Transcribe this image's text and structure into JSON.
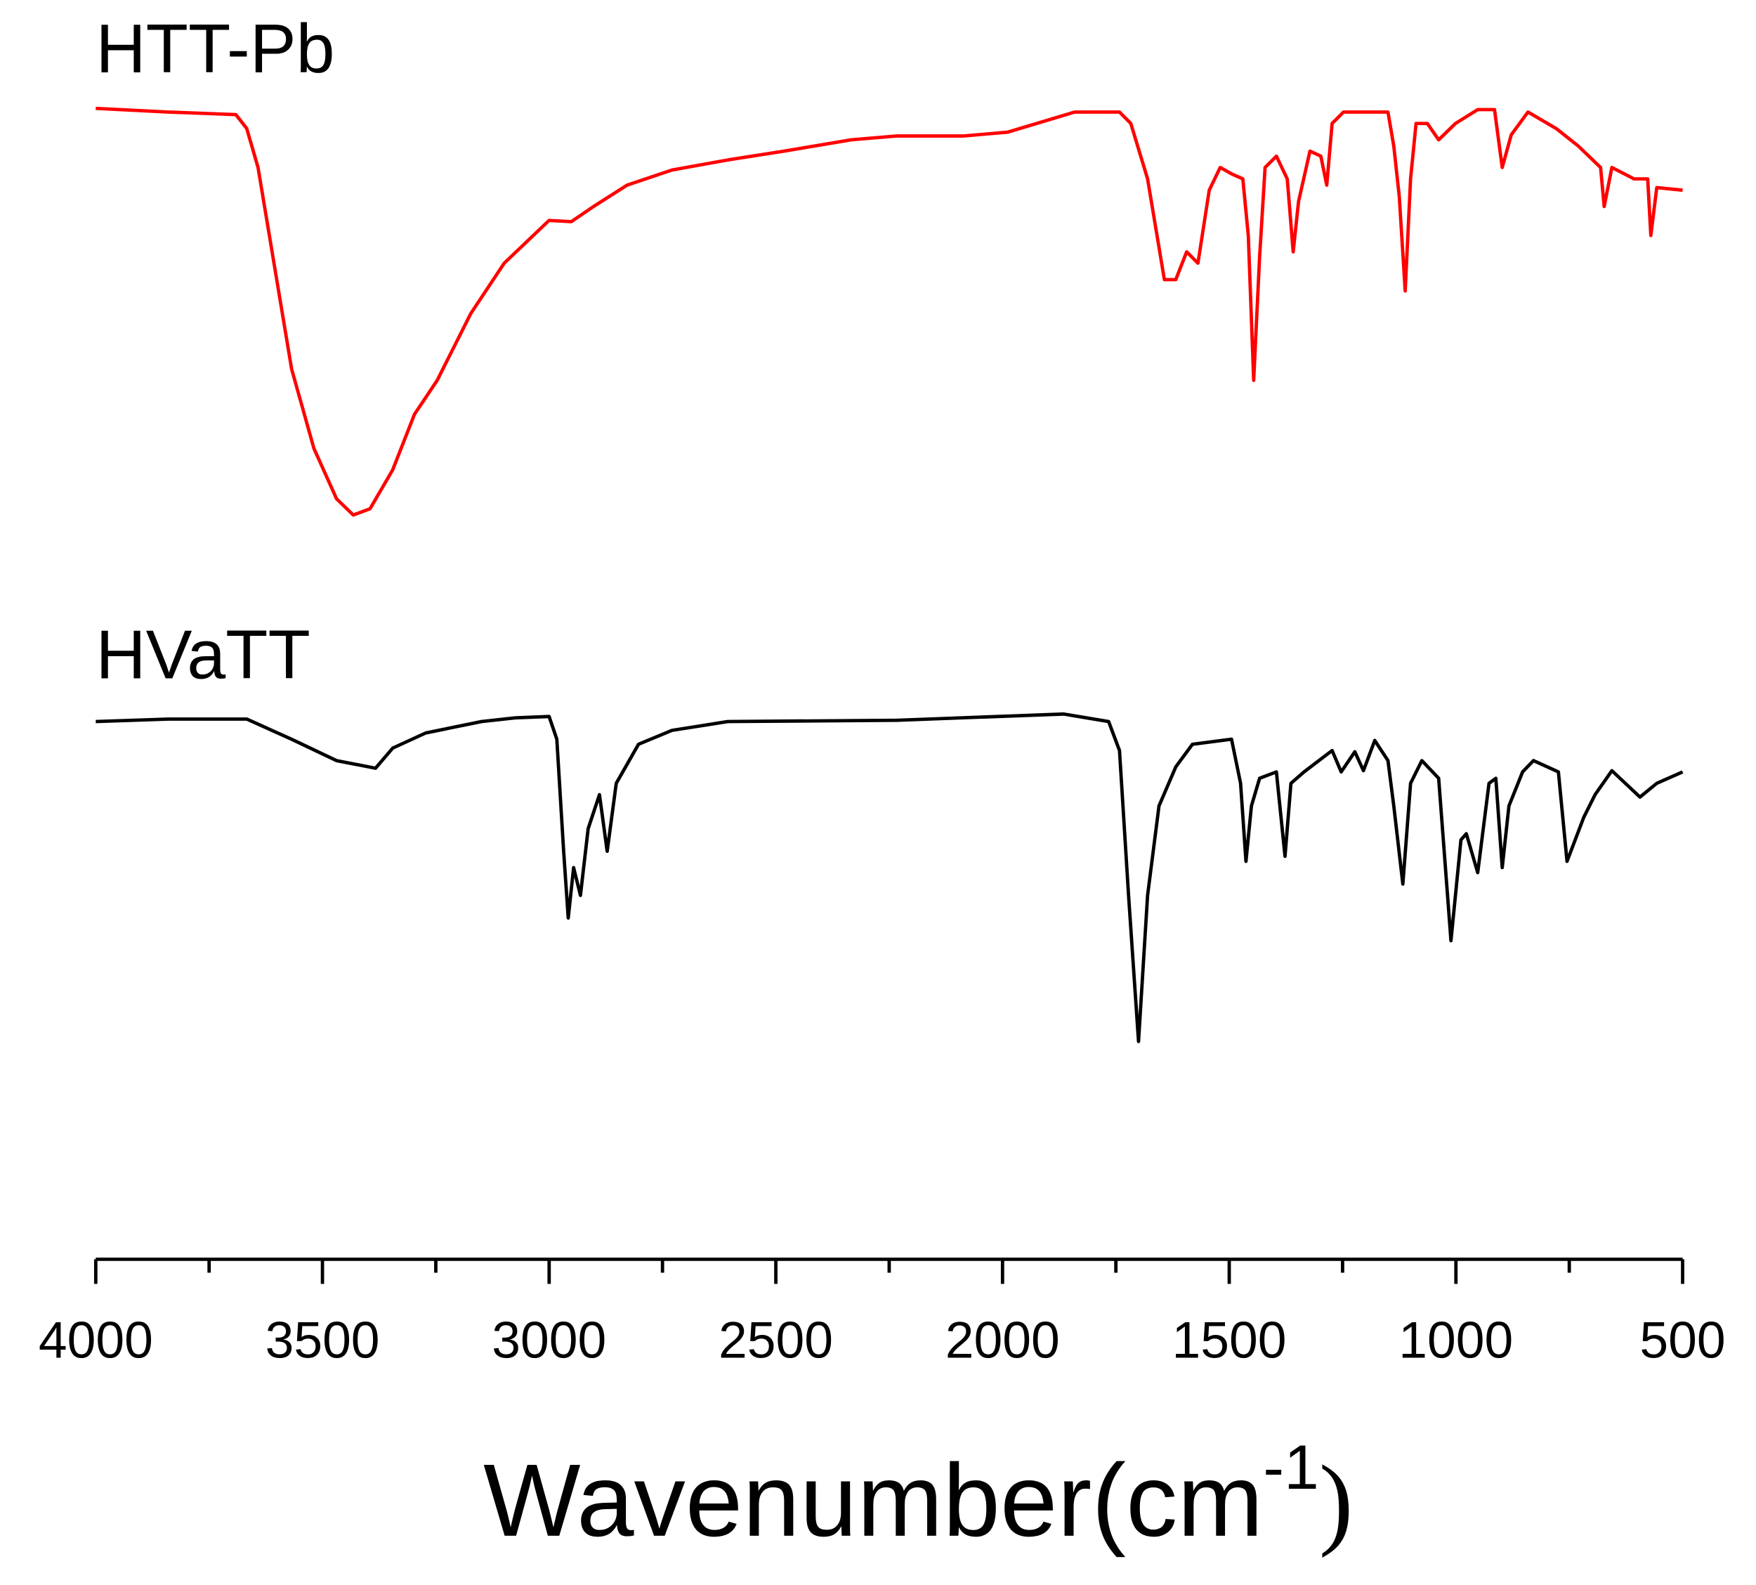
{
  "chart_data": {
    "type": "line",
    "xlabel": {
      "text": "Wavenumber(cm",
      "sup": "-1",
      "close": ")"
    },
    "xlim": [
      4000,
      500
    ],
    "xticks": [
      4000,
      3500,
      3000,
      2500,
      2000,
      1500,
      1000,
      500
    ],
    "xticks_minor": [
      3750,
      3250,
      2750,
      2250,
      1750,
      1250,
      750
    ],
    "ylim": [
      0,
      100
    ],
    "series": [
      {
        "name": "HTT-Pb",
        "color": "#ff0000",
        "x": [
          4000,
          3840,
          3691,
          3667,
          3642,
          3605,
          3568,
          3519,
          3469,
          3432,
          3395,
          3345,
          3297,
          3247,
          3173,
          3099,
          3000,
          2951,
          2902,
          2828,
          2729,
          2606,
          2482,
          2383,
          2334,
          2235,
          2087,
          1989,
          1841,
          1742,
          1717,
          1680,
          1643,
          1618,
          1594,
          1569,
          1544,
          1520,
          1495,
          1470,
          1458,
          1446,
          1433,
          1421,
          1396,
          1372,
          1359,
          1347,
          1322,
          1298,
          1285,
          1273,
          1248,
          1150,
          1137,
          1125,
          1112,
          1100,
          1088,
          1063,
          1038,
          1001,
          952,
          915,
          898,
          878,
          841,
          779,
          730,
          681,
          673,
          656,
          607,
          577,
          570,
          557,
          500
        ],
        "values": [
          91.4,
          91.1,
          90.9,
          89.8,
          86.7,
          78.7,
          70.7,
          64.4,
          60.4,
          59.1,
          59.6,
          62.7,
          67.1,
          69.8,
          75.1,
          79.1,
          82.5,
          82.4,
          83.6,
          85.3,
          86.5,
          87.3,
          88,
          88.6,
          88.9,
          89.2,
          89.2,
          89.5,
          91.1,
          91.1,
          90.2,
          85.8,
          77.8,
          77.8,
          80,
          79.1,
          84.9,
          86.7,
          86.2,
          85.8,
          81.3,
          69.8,
          79.6,
          86.7,
          87.6,
          85.8,
          80,
          84,
          88,
          87.6,
          85.3,
          90.2,
          91.1,
          91.1,
          88.4,
          84.4,
          76.9,
          85.8,
          90.2,
          90.2,
          88.9,
          90.2,
          91.3,
          91.3,
          86.7,
          89.3,
          91.1,
          89.8,
          88.4,
          86.7,
          83.6,
          86.7,
          85.8,
          85.8,
          81.3,
          85.1,
          84.9
        ]
      },
      {
        "name": "HVaTT",
        "color": "#000000",
        "x": [
          4000,
          3840,
          3667,
          3568,
          3469,
          3383,
          3345,
          3272,
          3149,
          3075,
          3000,
          2983,
          2968,
          2958,
          2946,
          2931,
          2914,
          2889,
          2872,
          2852,
          2803,
          2729,
          2606,
          2235,
          1865,
          1766,
          1742,
          1722,
          1700,
          1680,
          1655,
          1618,
          1581,
          1495,
          1475,
          1463,
          1451,
          1433,
          1396,
          1377,
          1364,
          1335,
          1273,
          1253,
          1223,
          1204,
          1179,
          1150,
          1137,
          1117,
          1100,
          1075,
          1038,
          1011,
          989,
          977,
          952,
          927,
          912,
          898,
          883,
          853,
          829,
          774,
          755,
          718,
          693,
          656,
          594,
          557,
          500
        ],
        "values": [
          42.7,
          42.9,
          42.9,
          41.3,
          39.6,
          39,
          40.6,
          41.8,
          42.7,
          43,
          43.1,
          41.3,
          32.4,
          27.1,
          31.1,
          28.9,
          34.2,
          36.9,
          32.4,
          37.8,
          40.9,
          42,
          42.7,
          42.8,
          43.3,
          42.7,
          40.4,
          28.9,
          17.3,
          28.9,
          36,
          39.1,
          40.9,
          41.3,
          37.8,
          31.6,
          36,
          38.2,
          38.7,
          32,
          37.8,
          38.7,
          40.4,
          38.7,
          40.3,
          38.8,
          41.2,
          39.6,
          36,
          29.8,
          37.8,
          39.6,
          38.2,
          25.3,
          33.3,
          33.8,
          30.7,
          37.8,
          38.2,
          31.1,
          36,
          38.7,
          39.6,
          38.7,
          31.6,
          35.1,
          36.9,
          38.8,
          36.7,
          37.8,
          38.7
        ]
      }
    ]
  }
}
